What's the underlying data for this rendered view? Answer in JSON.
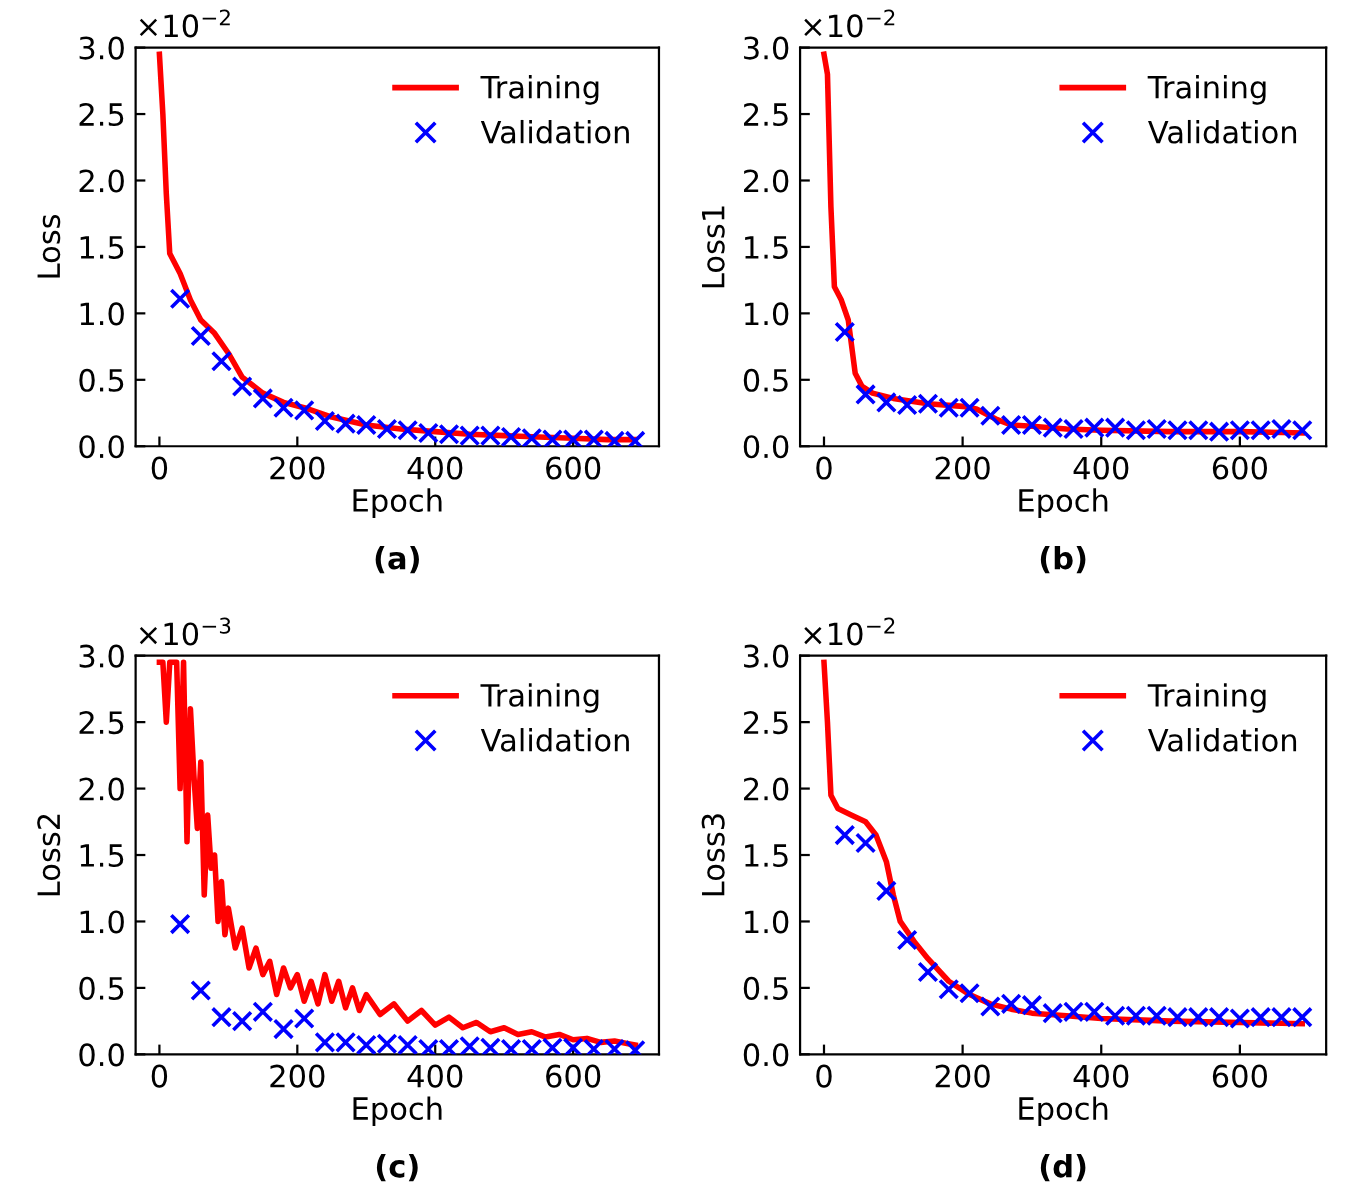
{
  "chart_data": [
    {
      "type": "line",
      "xlabel": "Epoch",
      "ylabel": "Loss",
      "annotations": [
        "×10$^{−2}$",
        "(a)"
      ],
      "xlim": [
        -34.5,
        724.5
      ],
      "xticks": [
        0,
        200,
        400,
        600
      ],
      "ylim": [
        0,
        3.0
      ],
      "yticks": [
        {
          "value": 0,
          "label": "0.0"
        },
        0.5,
        {
          "value": 1,
          "label": "1.0"
        },
        1.5,
        {
          "value": 2,
          "label": "2.0"
        },
        2.5,
        {
          "value": 3,
          "label": "3.0"
        }
      ],
      "legend": "top right",
      "grid": false,
      "series": [
        {
          "name": "Training",
          "type": "line",
          "color": "#ff0000",
          "line_style": "solid",
          "x": [
            0,
            5,
            10,
            15,
            30,
            45,
            60,
            80,
            100,
            120,
            150,
            180,
            210,
            250,
            300,
            350,
            400,
            450,
            500,
            550,
            600,
            650,
            690
          ],
          "values": [
            2.95,
            2.5,
            1.9,
            1.45,
            1.3,
            1.1,
            0.95,
            0.85,
            0.7,
            0.52,
            0.4,
            0.33,
            0.29,
            0.22,
            0.16,
            0.13,
            0.11,
            0.09,
            0.08,
            0.07,
            0.06,
            0.05,
            0.05
          ]
        },
        {
          "name": "Validation",
          "type": "scatter",
          "color": "#0000ff",
          "marker": "cross",
          "x": [
            30,
            60,
            90,
            120,
            150,
            180,
            210,
            240,
            270,
            300,
            330,
            360,
            390,
            420,
            450,
            480,
            510,
            540,
            570,
            600,
            630,
            660,
            690
          ],
          "values": [
            1.11,
            0.83,
            0.64,
            0.45,
            0.36,
            0.29,
            0.27,
            0.19,
            0.17,
            0.16,
            0.13,
            0.12,
            0.1,
            0.09,
            0.08,
            0.08,
            0.07,
            0.06,
            0.05,
            0.05,
            0.05,
            0.04,
            0.04
          ]
        }
      ]
    },
    {
      "type": "line",
      "xlabel": "Epoch",
      "ylabel": "Loss1",
      "annotations": [
        "×10$^{−2}$",
        "(b)"
      ],
      "xlim": [
        -34.5,
        724.5
      ],
      "xticks": [
        0,
        200,
        400,
        600
      ],
      "ylim": [
        0,
        3.0
      ],
      "yticks": [
        {
          "value": 0,
          "label": "0.0"
        },
        0.5,
        {
          "value": 1,
          "label": "1.0"
        },
        1.5,
        {
          "value": 2,
          "label": "2.0"
        },
        2.5,
        {
          "value": 3,
          "label": "3.0"
        }
      ],
      "legend": "top right",
      "grid": false,
      "series": [
        {
          "name": "Training",
          "type": "line",
          "color": "#ff0000",
          "line_style": "solid",
          "x": [
            0,
            5,
            10,
            15,
            25,
            35,
            45,
            55,
            70,
            100,
            150,
            200,
            220,
            250,
            270,
            300,
            350,
            400,
            500,
            600,
            690
          ],
          "values": [
            2.95,
            2.8,
            1.8,
            1.2,
            1.1,
            0.95,
            0.55,
            0.45,
            0.4,
            0.36,
            0.32,
            0.3,
            0.28,
            0.2,
            0.16,
            0.15,
            0.13,
            0.12,
            0.11,
            0.11,
            0.1
          ]
        },
        {
          "name": "Validation",
          "type": "scatter",
          "color": "#0000ff",
          "marker": "cross",
          "x": [
            30,
            60,
            90,
            120,
            150,
            180,
            210,
            240,
            270,
            300,
            330,
            360,
            390,
            420,
            450,
            480,
            510,
            540,
            570,
            600,
            630,
            660,
            690
          ],
          "values": [
            0.86,
            0.39,
            0.33,
            0.31,
            0.32,
            0.29,
            0.29,
            0.23,
            0.16,
            0.16,
            0.14,
            0.13,
            0.14,
            0.14,
            0.12,
            0.13,
            0.12,
            0.12,
            0.11,
            0.12,
            0.12,
            0.13,
            0.12
          ]
        }
      ]
    },
    {
      "type": "line",
      "xlabel": "Epoch",
      "ylabel": "Loss2",
      "annotations": [
        "×10$^{−3}$",
        "(c)"
      ],
      "xlim": [
        -34.5,
        724.5
      ],
      "xticks": [
        0,
        200,
        400,
        600
      ],
      "ylim": [
        0,
        3.0
      ],
      "yticks": [
        {
          "value": 0,
          "label": "0.0"
        },
        0.5,
        {
          "value": 1,
          "label": "1.0"
        },
        1.5,
        {
          "value": 2,
          "label": "2.0"
        },
        2.5,
        {
          "value": 3,
          "label": "3.0"
        }
      ],
      "legend": "top right",
      "grid": false,
      "series": [
        {
          "name": "Training",
          "type": "line",
          "color": "#ff0000",
          "line_style": "solid",
          "x": [
            0,
            5,
            10,
            15,
            20,
            25,
            30,
            35,
            40,
            45,
            50,
            55,
            60,
            65,
            70,
            75,
            80,
            85,
            90,
            95,
            100,
            110,
            120,
            130,
            140,
            150,
            160,
            170,
            180,
            190,
            200,
            210,
            220,
            230,
            240,
            250,
            260,
            270,
            280,
            290,
            300,
            320,
            340,
            360,
            380,
            400,
            420,
            440,
            460,
            480,
            500,
            520,
            540,
            560,
            580,
            600,
            620,
            640,
            660,
            680,
            690
          ],
          "values": [
            2.95,
            2.95,
            2.5,
            2.95,
            2.95,
            2.95,
            2.0,
            2.95,
            1.6,
            2.6,
            2.1,
            1.7,
            2.2,
            1.2,
            1.8,
            1.4,
            1.5,
            1.0,
            1.3,
            0.9,
            1.1,
            0.8,
            0.95,
            0.65,
            0.8,
            0.6,
            0.7,
            0.45,
            0.65,
            0.5,
            0.6,
            0.4,
            0.55,
            0.38,
            0.6,
            0.4,
            0.55,
            0.35,
            0.5,
            0.33,
            0.45,
            0.3,
            0.38,
            0.25,
            0.33,
            0.22,
            0.28,
            0.2,
            0.24,
            0.17,
            0.2,
            0.15,
            0.17,
            0.13,
            0.15,
            0.11,
            0.12,
            0.09,
            0.1,
            0.08,
            0.07
          ]
        },
        {
          "name": "Validation",
          "type": "scatter",
          "color": "#0000ff",
          "marker": "cross",
          "x": [
            30,
            60,
            90,
            120,
            150,
            180,
            210,
            240,
            270,
            300,
            330,
            360,
            390,
            420,
            450,
            480,
            510,
            540,
            570,
            600,
            630,
            660,
            690
          ],
          "values": [
            0.98,
            0.48,
            0.28,
            0.25,
            0.32,
            0.19,
            0.27,
            0.09,
            0.09,
            0.07,
            0.08,
            0.07,
            0.04,
            0.04,
            0.06,
            0.05,
            0.04,
            0.04,
            0.05,
            0.05,
            0.04,
            0.04,
            0.03
          ]
        }
      ]
    },
    {
      "type": "line",
      "xlabel": "Epoch",
      "ylabel": "Loss3",
      "annotations": [
        "×10$^{−2}$",
        "(d)"
      ],
      "xlim": [
        -34.5,
        724.5
      ],
      "xticks": [
        0,
        200,
        400,
        600
      ],
      "ylim": [
        0,
        3.0
      ],
      "yticks": [
        {
          "value": 0,
          "label": "0.0"
        },
        0.5,
        {
          "value": 1,
          "label": "1.0"
        },
        1.5,
        {
          "value": 2,
          "label": "2.0"
        },
        2.5,
        {
          "value": 3,
          "label": "3.0"
        }
      ],
      "legend": "top right",
      "grid": false,
      "series": [
        {
          "name": "Training",
          "type": "line",
          "color": "#ff0000",
          "line_style": "solid",
          "x": [
            0,
            5,
            10,
            20,
            40,
            60,
            75,
            90,
            100,
            110,
            130,
            150,
            180,
            210,
            240,
            270,
            300,
            350,
            400,
            500,
            600,
            690
          ],
          "values": [
            2.95,
            2.5,
            1.95,
            1.85,
            1.8,
            1.75,
            1.65,
            1.45,
            1.2,
            1.0,
            0.85,
            0.72,
            0.55,
            0.45,
            0.38,
            0.34,
            0.31,
            0.29,
            0.27,
            0.25,
            0.24,
            0.23
          ]
        },
        {
          "name": "Validation",
          "type": "scatter",
          "color": "#0000ff",
          "marker": "cross",
          "x": [
            30,
            60,
            90,
            120,
            150,
            180,
            210,
            240,
            270,
            300,
            330,
            360,
            390,
            420,
            450,
            480,
            510,
            540,
            570,
            600,
            630,
            660,
            690
          ],
          "values": [
            1.65,
            1.59,
            1.23,
            0.86,
            0.62,
            0.49,
            0.46,
            0.36,
            0.38,
            0.37,
            0.31,
            0.32,
            0.32,
            0.29,
            0.29,
            0.29,
            0.28,
            0.28,
            0.28,
            0.27,
            0.28,
            0.28,
            0.28
          ]
        }
      ]
    }
  ]
}
